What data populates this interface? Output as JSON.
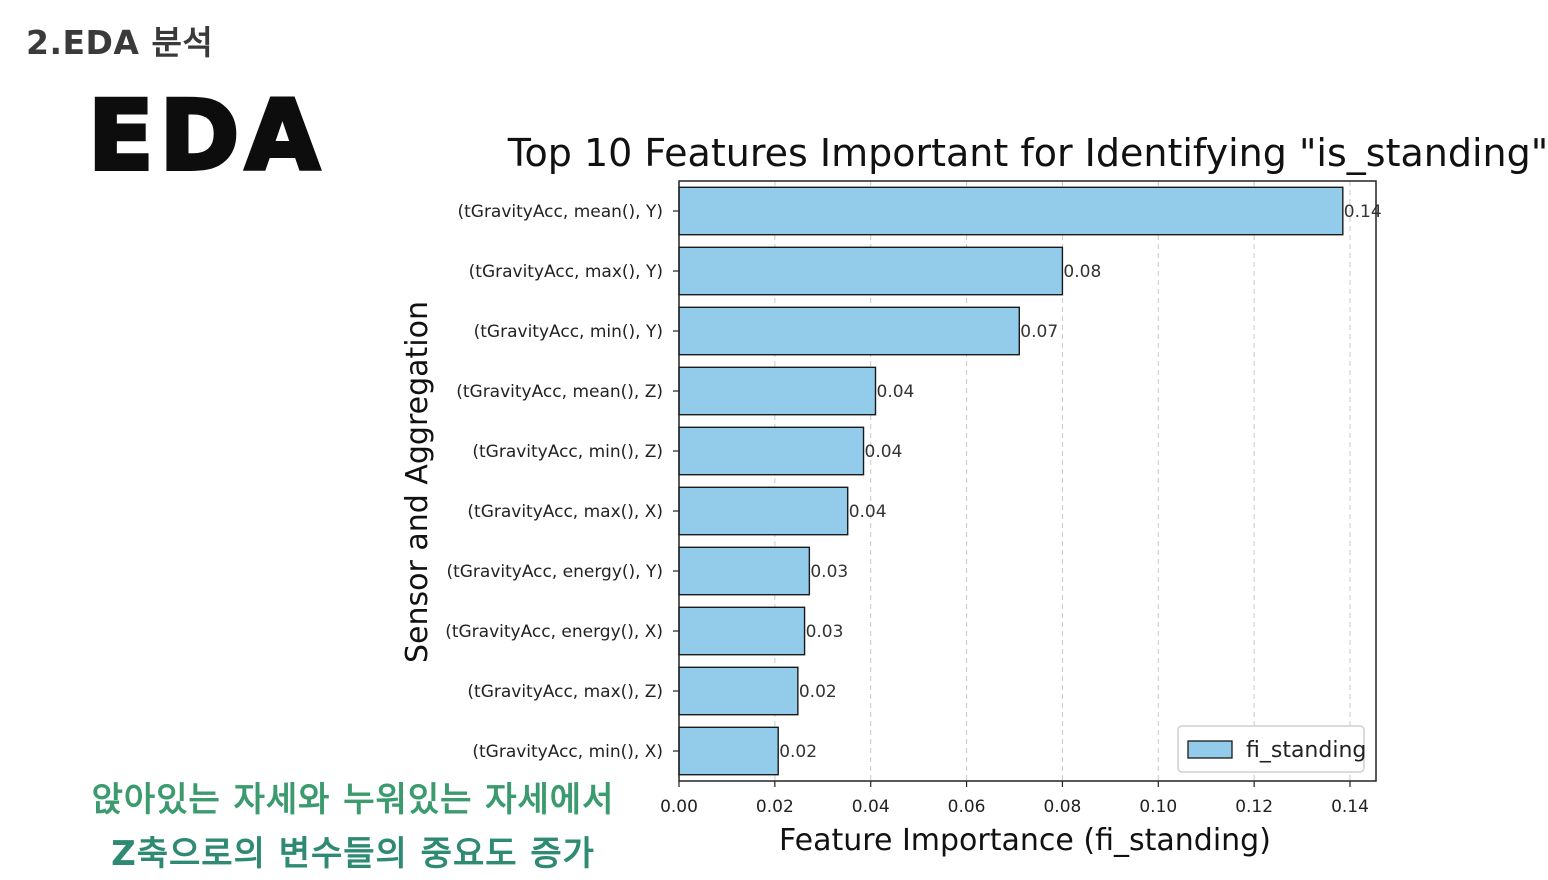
{
  "slide": {
    "section_title": "2.EDA 분석",
    "big_title": "EDA",
    "caption_line1": "앉아있는 자세와 누워있는 자세에서",
    "caption_line2": "Z축으로의 변수들의 중요도 증가"
  },
  "chart_data": {
    "type": "bar",
    "orientation": "horizontal",
    "title": "Top 10 Features Important for Identifying \"is_standing\"",
    "xlabel": "Feature Importance (fi_standing)",
    "ylabel": "Sensor and Aggregation",
    "xlim": [
      0,
      0.145
    ],
    "xticks": [
      "0.00",
      "0.02",
      "0.04",
      "0.06",
      "0.08",
      "0.10",
      "0.12",
      "0.14"
    ],
    "grid": "vertical dashed",
    "legend": {
      "position": "lower-right",
      "entries": [
        "fi_standing"
      ]
    },
    "bar_color": "#93cbea",
    "edge_color": "#1a1a1a",
    "categories": [
      "(tGravityAcc, mean(), Y)",
      "(tGravityAcc, max(), Y)",
      "(tGravityAcc, min(), Y)",
      "(tGravityAcc, mean(), Z)",
      "(tGravityAcc, min(), Z)",
      "(tGravityAcc, max(), X)",
      "(tGravityAcc, energy(), Y)",
      "(tGravityAcc, energy(), X)",
      "(tGravityAcc, max(), Z)",
      "(tGravityAcc, min(), X)"
    ],
    "series": [
      {
        "name": "fi_standing",
        "values": [
          0.1385,
          0.08,
          0.071,
          0.041,
          0.0385,
          0.0352,
          0.0272,
          0.0262,
          0.0248,
          0.0207
        ],
        "labels": [
          "0.14",
          "0.08",
          "0.07",
          "0.04",
          "0.04",
          "0.04",
          "0.03",
          "0.03",
          "0.02",
          "0.02"
        ]
      }
    ]
  }
}
